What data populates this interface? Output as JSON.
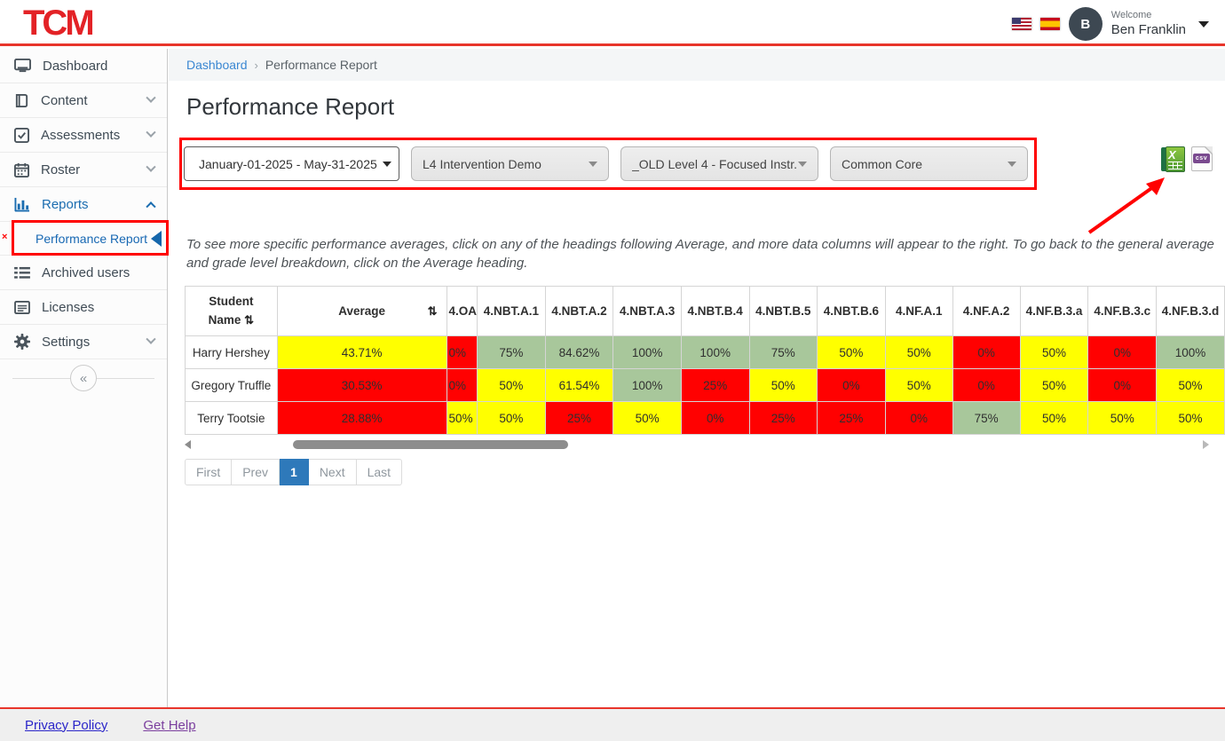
{
  "header": {
    "logo": "TCM",
    "welcome_label": "Welcome",
    "user_name": "Ben Franklin",
    "avatar_initial": "B"
  },
  "sidebar": {
    "items": [
      {
        "label": "Dashboard",
        "icon": "monitor-icon"
      },
      {
        "label": "Content",
        "icon": "book-icon",
        "chevron": "down"
      },
      {
        "label": "Assessments",
        "icon": "checkbox-icon",
        "chevron": "down"
      },
      {
        "label": "Roster",
        "icon": "calendar-icon",
        "chevron": "down"
      },
      {
        "label": "Reports",
        "icon": "bar-chart-icon",
        "chevron": "up",
        "active": true
      },
      {
        "label": "Performance Report",
        "sub": true,
        "active": true,
        "annotated": true
      },
      {
        "label": "Archived users",
        "icon": "list-icon"
      },
      {
        "label": "Licenses",
        "icon": "license-icon"
      },
      {
        "label": "Settings",
        "icon": "gear-icon",
        "chevron": "down"
      }
    ],
    "collapse_glyph": "«"
  },
  "breadcrumb": {
    "home": "Dashboard",
    "separator": "›",
    "current": "Performance Report"
  },
  "page": {
    "title": "Performance Report"
  },
  "filters": {
    "date_range": "January-01-2025 - May-31-2025",
    "class_group": "L4 Intervention Demo",
    "assignment": "_OLD Level 4 - Focused Instr...",
    "standard": "Common Core"
  },
  "export": {
    "excel_x": "X",
    "csv_label": "csv"
  },
  "instruction": "To see more specific performance averages, click on any of the headings following Average, and more data columns will appear to the right. To go back to the general average and grade level breakdown, click on the Average heading.",
  "table": {
    "sort_icon": "⇅",
    "student_header_line1": "Student",
    "student_header_line2": "Name",
    "average_header": "Average",
    "partial_header": "4.OA",
    "standard_headers": [
      "4.NBT.A.1",
      "4.NBT.A.2",
      "4.NBT.A.3",
      "4.NBT.B.4",
      "4.NBT.B.5",
      "4.NBT.B.6",
      "4.NF.A.1",
      "4.NF.A.2",
      "4.NF.B.3.a",
      "4.NF.B.3.c",
      "4.NF.B.3.d"
    ],
    "colors": {
      "g": "#a8c79b",
      "y": "#ffff00",
      "r": "#ff0101"
    },
    "rows": [
      {
        "name": "Harry Hershey",
        "average": {
          "v": "43.71%",
          "c": "y"
        },
        "partial": {
          "v": "0%",
          "c": "r"
        },
        "cells": [
          {
            "v": "75%",
            "c": "g"
          },
          {
            "v": "84.62%",
            "c": "g"
          },
          {
            "v": "100%",
            "c": "g"
          },
          {
            "v": "100%",
            "c": "g"
          },
          {
            "v": "75%",
            "c": "g"
          },
          {
            "v": "50%",
            "c": "y"
          },
          {
            "v": "50%",
            "c": "y"
          },
          {
            "v": "0%",
            "c": "r"
          },
          {
            "v": "50%",
            "c": "y"
          },
          {
            "v": "0%",
            "c": "r"
          },
          {
            "v": "100%",
            "c": "g"
          }
        ]
      },
      {
        "name": "Gregory Truffle",
        "average": {
          "v": "30.53%",
          "c": "r"
        },
        "partial": {
          "v": "0%",
          "c": "r"
        },
        "cells": [
          {
            "v": "50%",
            "c": "y"
          },
          {
            "v": "61.54%",
            "c": "y"
          },
          {
            "v": "100%",
            "c": "g"
          },
          {
            "v": "25%",
            "c": "r"
          },
          {
            "v": "50%",
            "c": "y"
          },
          {
            "v": "0%",
            "c": "r"
          },
          {
            "v": "50%",
            "c": "y"
          },
          {
            "v": "0%",
            "c": "r"
          },
          {
            "v": "50%",
            "c": "y"
          },
          {
            "v": "0%",
            "c": "r"
          },
          {
            "v": "50%",
            "c": "y"
          }
        ]
      },
      {
        "name": "Terry Tootsie",
        "average": {
          "v": "28.88%",
          "c": "r"
        },
        "partial": {
          "v": "50%",
          "c": "y"
        },
        "cells": [
          {
            "v": "50%",
            "c": "y"
          },
          {
            "v": "25%",
            "c": "r"
          },
          {
            "v": "50%",
            "c": "y"
          },
          {
            "v": "0%",
            "c": "r"
          },
          {
            "v": "25%",
            "c": "r"
          },
          {
            "v": "25%",
            "c": "r"
          },
          {
            "v": "0%",
            "c": "r"
          },
          {
            "v": "75%",
            "c": "g"
          },
          {
            "v": "50%",
            "c": "y"
          },
          {
            "v": "50%",
            "c": "y"
          },
          {
            "v": "50%",
            "c": "y"
          }
        ]
      }
    ]
  },
  "pagination": {
    "first": "First",
    "prev": "Prev",
    "page": "1",
    "next": "Next",
    "last": "Last"
  },
  "footer": {
    "privacy": "Privacy Policy",
    "help": "Get Help"
  }
}
